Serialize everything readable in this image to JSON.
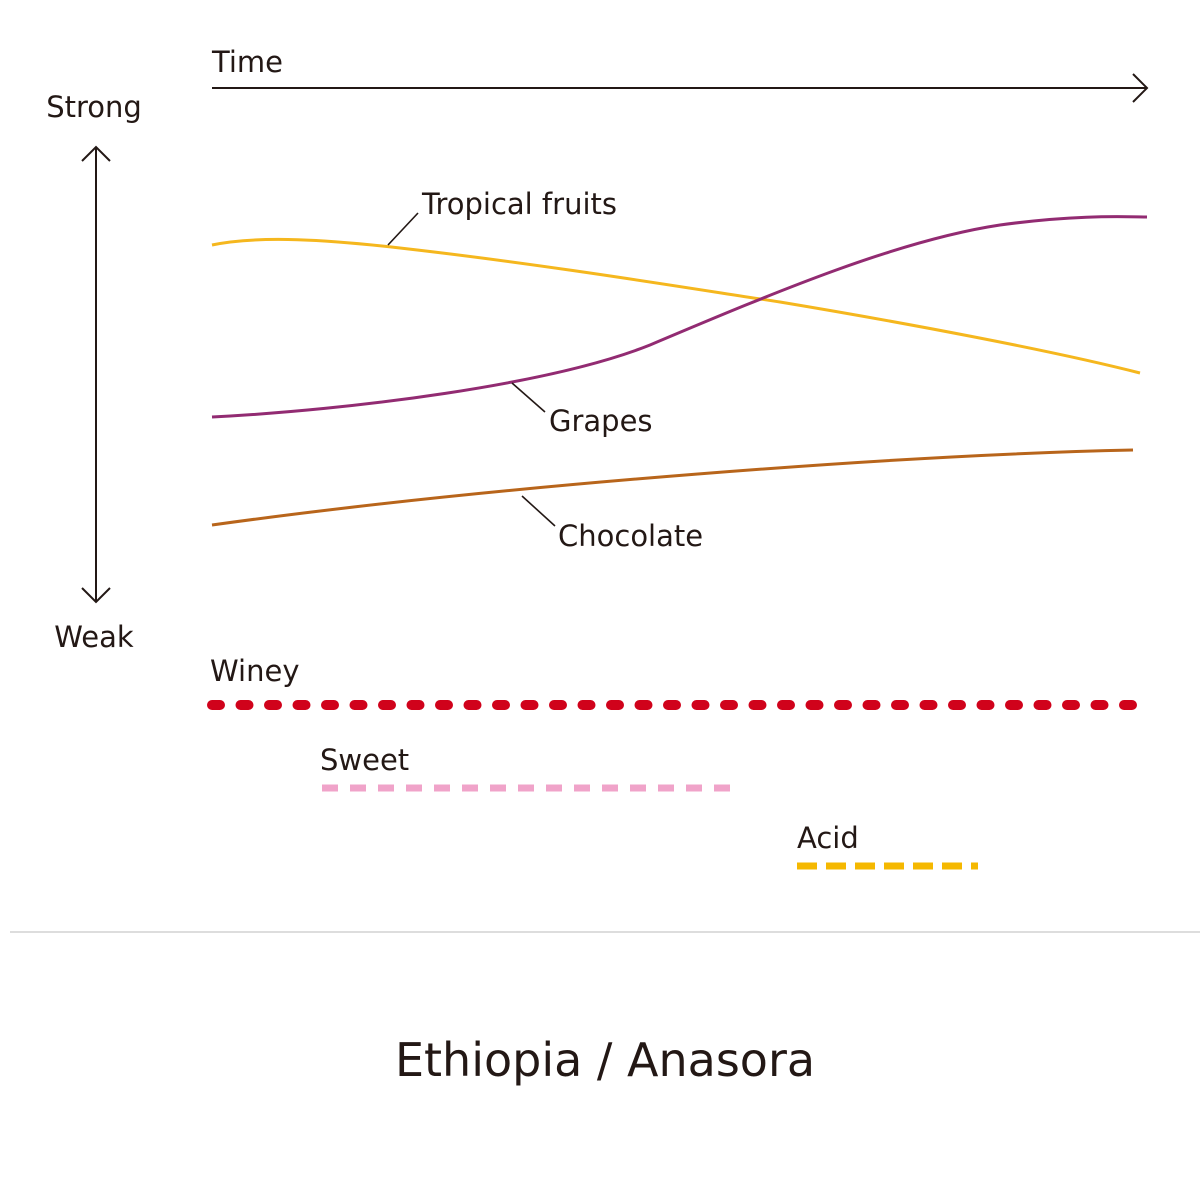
{
  "axes": {
    "time": "Time",
    "strong": "Strong",
    "weak": "Weak"
  },
  "curves": [
    {
      "label": "Tropical fruits"
    },
    {
      "label": "Grapes"
    },
    {
      "label": "Chocolate"
    }
  ],
  "bars": [
    {
      "label": "Winey"
    },
    {
      "label": "Sweet"
    },
    {
      "label": "Acid"
    }
  ],
  "title": "Ethiopia / Anasora"
}
